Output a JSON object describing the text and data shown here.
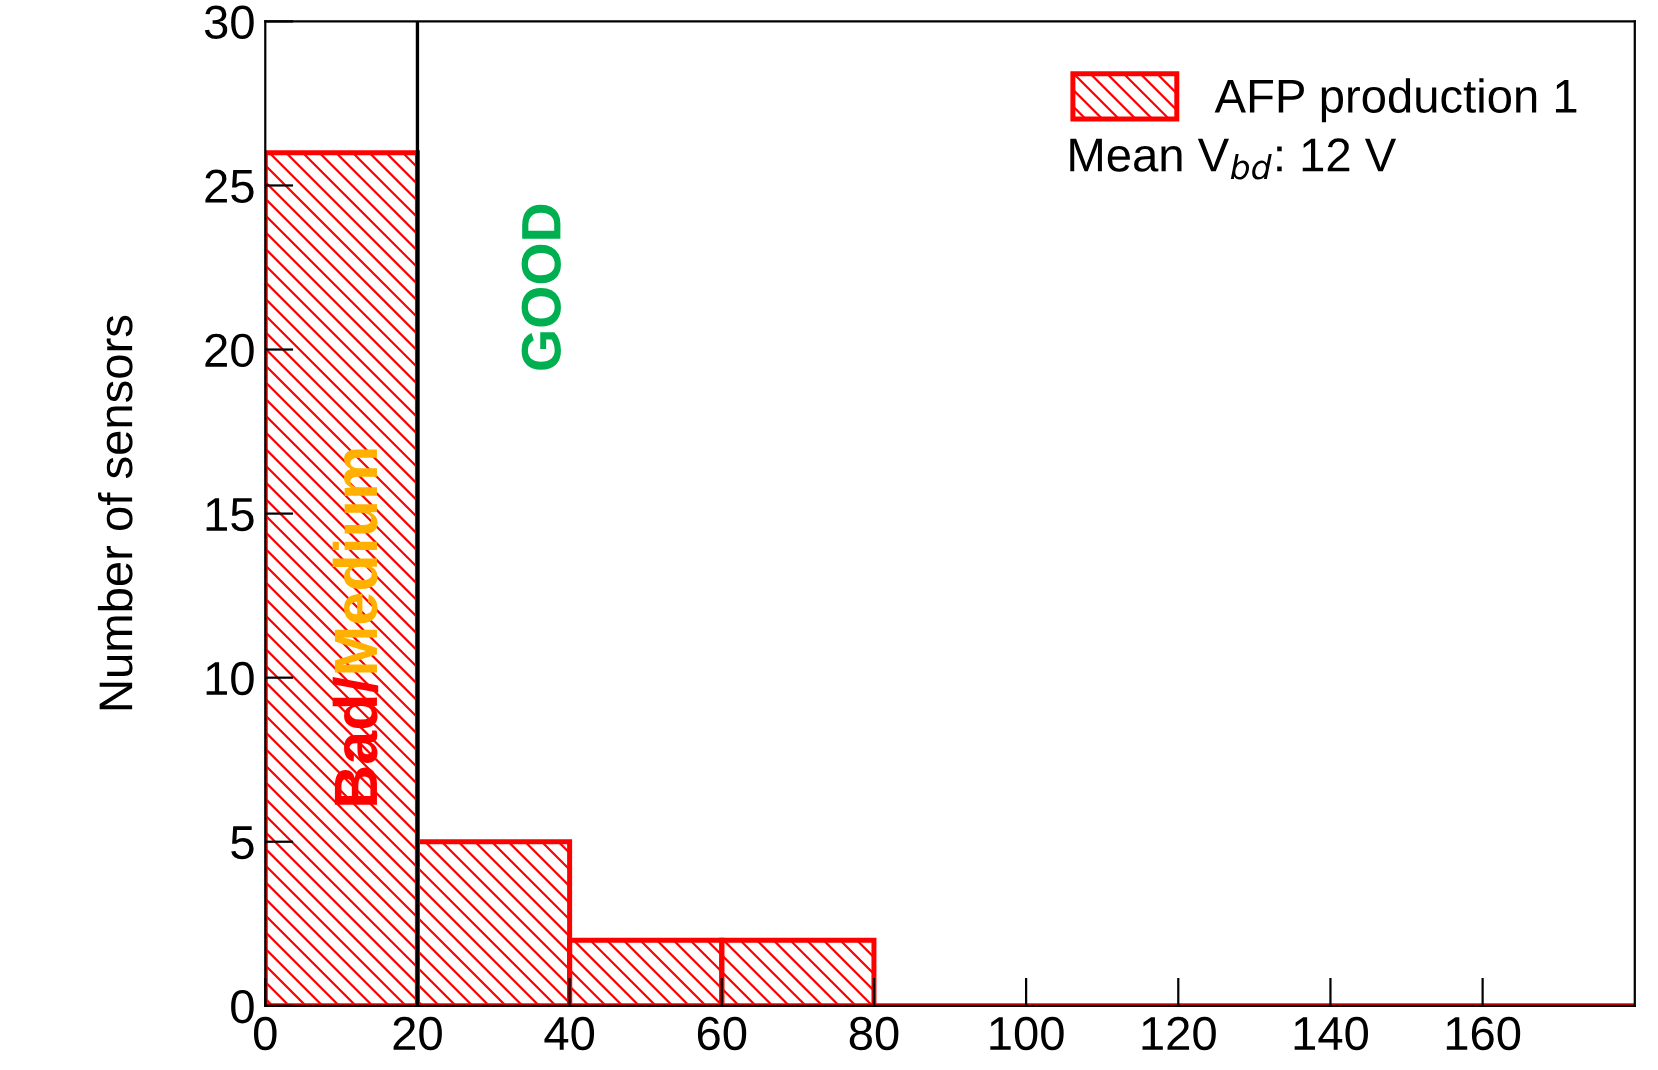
{
  "chart_data": {
    "type": "histogram",
    "ylabel": "Number of sensors",
    "bins": [
      0,
      20,
      40,
      60,
      80,
      100,
      120,
      140,
      160,
      180
    ],
    "series": [
      {
        "name": "AFP production 1",
        "color": "#ff0000",
        "values": [
          26,
          5,
          2,
          2,
          0,
          0,
          0,
          0,
          0
        ]
      }
    ],
    "xlim": [
      0,
      180
    ],
    "ylim": [
      0,
      30
    ],
    "xticks": [
      0,
      20,
      40,
      60,
      80,
      100,
      120,
      140,
      160
    ],
    "yticks": [
      0,
      5,
      10,
      15,
      20,
      25,
      30
    ],
    "ref_lines": [
      {
        "axis": "x",
        "value": 20,
        "color": "#000000"
      }
    ],
    "annotations": [
      "Mean V$_{bd}$: 12 V",
      "Bad/",
      "Medium",
      "GOOD"
    ],
    "legend": "top right",
    "grid": false
  }
}
